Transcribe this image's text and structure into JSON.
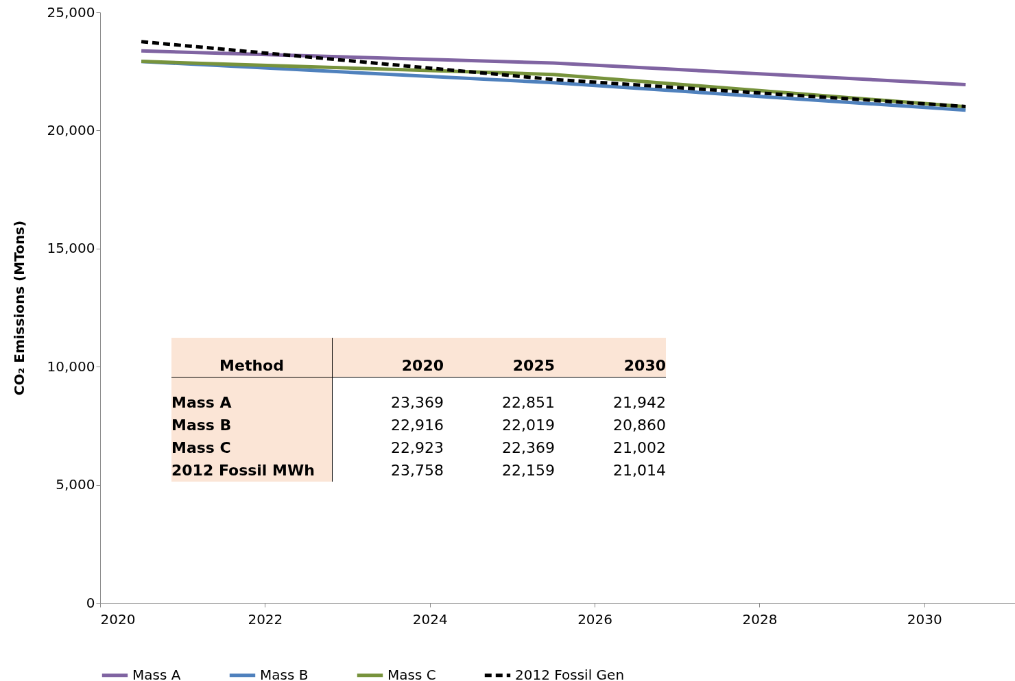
{
  "chart_data": [
    {
      "type": "line",
      "ylabel": "CO₂ Emissions (MTons)",
      "x": [
        2020.5,
        2025.5,
        2030.5
      ],
      "xlim": [
        2020,
        2031.1
      ],
      "xticks": [
        2020,
        2022,
        2024,
        2026,
        2028,
        2030
      ],
      "ylim": [
        0,
        25000
      ],
      "yticks": [
        0,
        {
          "value": 5000,
          "label": "5,000"
        },
        {
          "value": 10000,
          "label": "10,000"
        },
        {
          "value": 15000,
          "label": "15,000"
        },
        {
          "value": 20000,
          "label": "20,000"
        },
        {
          "value": 25000,
          "label": "25,000"
        }
      ],
      "grid": false,
      "legend": "bottom",
      "series": [
        {
          "name": "Mass A",
          "color": "#8064a2",
          "line_style": "solid",
          "values": [
            23369,
            22851,
            21942
          ]
        },
        {
          "name": "Mass B",
          "color": "#4f81bd",
          "line_style": "solid",
          "values": [
            22916,
            22019,
            20860
          ]
        },
        {
          "name": "Mass C",
          "color": "#77933c",
          "line_style": "solid",
          "values": [
            22923,
            22369,
            21002
          ]
        },
        {
          "name": "2012 Fossil Gen",
          "color": "#000000",
          "line_style": "dashed",
          "values": [
            23758,
            22159,
            21014
          ]
        }
      ]
    },
    {
      "type": "other",
      "annotations": [
        "Method"
      ],
      "categories": [
        "Mass A",
        "Mass B",
        "Mass C",
        "2012 Fossil MWh"
      ],
      "series": [
        {
          "name": "2020",
          "values": [
            23369,
            22916,
            22923,
            23758
          ],
          "value_labels": [
            "23,369",
            "22,916",
            "22,923",
            "23,758"
          ]
        },
        {
          "name": "2025",
          "values": [
            22851,
            22019,
            22369,
            22159
          ],
          "value_labels": [
            "22,851",
            "22,019",
            "22,369",
            "22,159"
          ]
        },
        {
          "name": "2030",
          "values": [
            21942,
            20860,
            21002,
            21014
          ],
          "value_labels": [
            "21,942",
            "20,860",
            "21,002",
            "21,014"
          ]
        }
      ]
    }
  ]
}
